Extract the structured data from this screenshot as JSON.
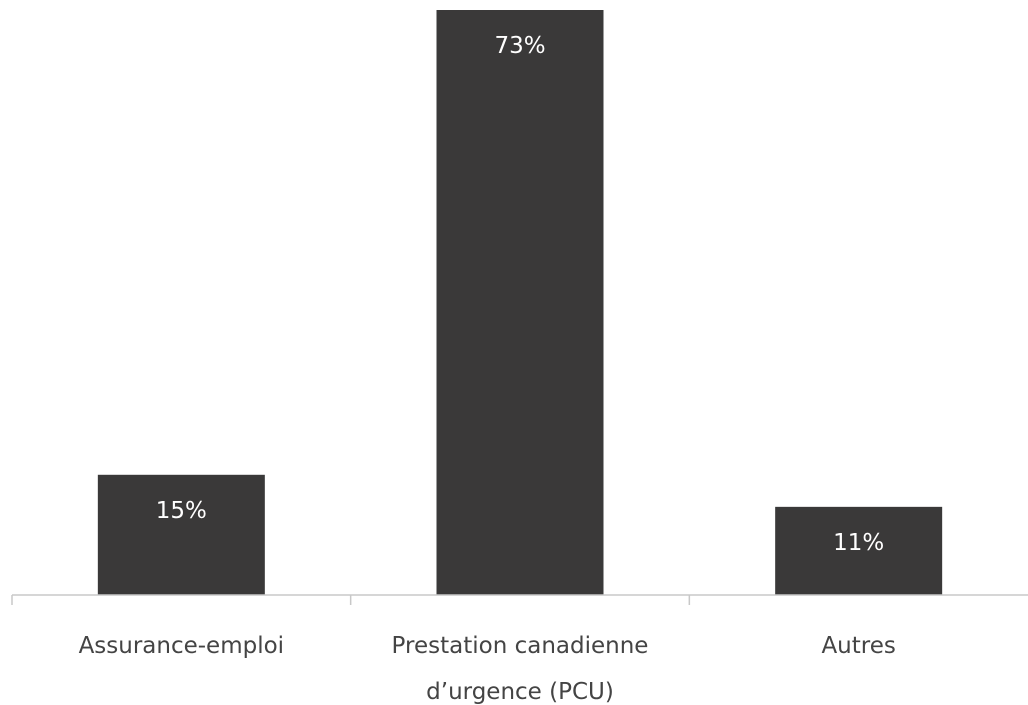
{
  "chart_data": {
    "type": "bar",
    "categories": [
      [
        "Assurance-emploi"
      ],
      [
        "Prestation canadienne",
        "d’urgence (PCU)"
      ],
      [
        "Autres"
      ]
    ],
    "values": [
      15,
      73,
      11
    ],
    "data_labels": [
      "15%",
      "73%",
      "11%"
    ],
    "title": "",
    "xlabel": "",
    "ylabel": "",
    "ylim": [
      0,
      73
    ],
    "grid": false,
    "legend": "none",
    "colors": {
      "bar": "#3a3939",
      "data_label": "#ffffff",
      "axis": "#c8c8c8",
      "category_label": "#444444"
    }
  }
}
